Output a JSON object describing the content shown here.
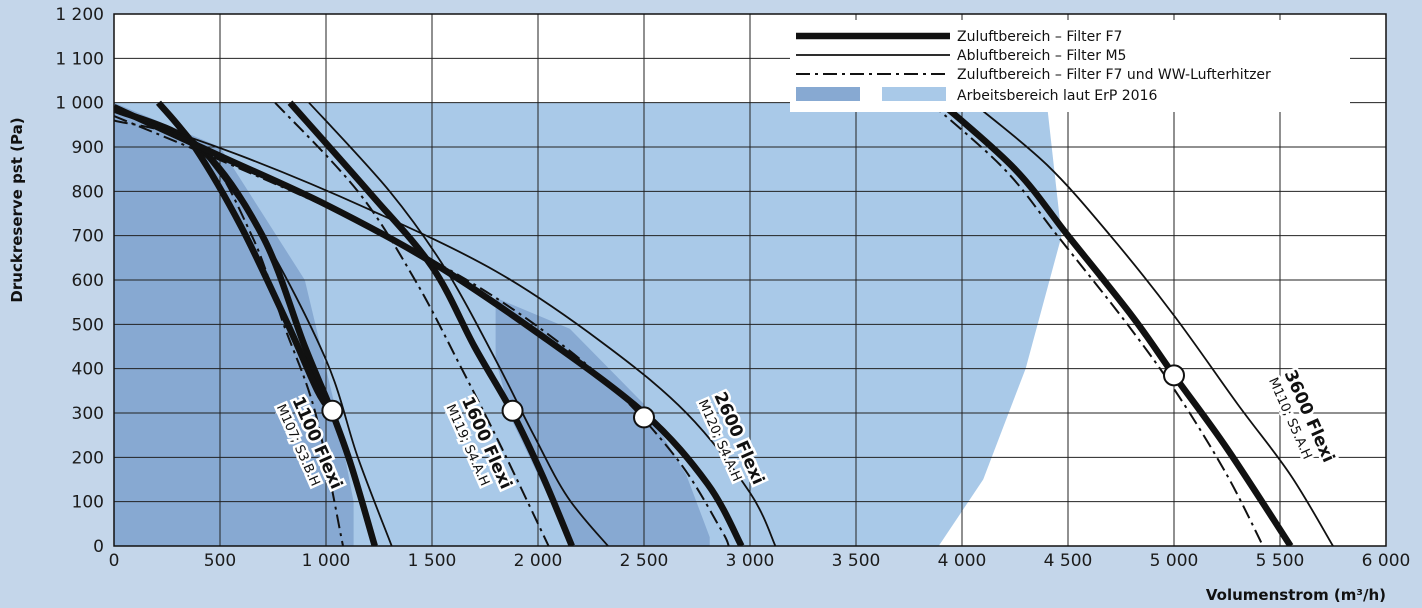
{
  "chart_data": {
    "type": "line",
    "title": "",
    "xlabel": "Volumenstrom (m³/h)",
    "ylabel": "Druckreserve pst (Pa)",
    "xlim": [
      0,
      6000
    ],
    "ylim": [
      0,
      1200
    ],
    "x_ticks": [
      0,
      500,
      1000,
      1500,
      2000,
      2500,
      3000,
      3500,
      4000,
      4500,
      5000,
      5500,
      6000
    ],
    "x_tick_labels": [
      "0",
      "500",
      "1 000",
      "1 500",
      "2 000",
      "2 500",
      "3 000",
      "3 500",
      "4 000",
      "4 500",
      "5 000",
      "5 500",
      "6 000"
    ],
    "y_ticks": [
      0,
      100,
      200,
      300,
      400,
      500,
      600,
      700,
      800,
      900,
      1000,
      1100,
      1200
    ],
    "y_tick_labels": [
      "0",
      "100",
      "200",
      "300",
      "400",
      "500",
      "600",
      "700",
      "800",
      "900",
      "1 000",
      "1 100",
      "1 200"
    ],
    "grid": true,
    "legend_position": "top-right",
    "legend": [
      {
        "label": "Zuluftbereich – Filter F7",
        "style": "thick"
      },
      {
        "label": "Abluftbereich – Filter M5",
        "style": "thin"
      },
      {
        "label": "Zuluftbereich – Filter F7 und WW-Lufterhitzer",
        "style": "dashdot"
      },
      {
        "label": "Arbeitsbereich laut ErP 2016",
        "style": "area"
      }
    ],
    "colors": {
      "background": "#c4d6ea",
      "plot_bg": "#ffffff",
      "area_dark": "#87a9d2",
      "area_light": "#a9c9e8",
      "grid": "#222222",
      "line": "#111111"
    },
    "work_areas": [
      {
        "model": "1100 Flexi",
        "shade": "dark",
        "points": [
          [
            0,
            1000
          ],
          [
            500,
            900
          ],
          [
            900,
            600
          ],
          [
            1050,
            300
          ],
          [
            1130,
            100
          ],
          [
            1130,
            0
          ],
          [
            0,
            0
          ]
        ]
      },
      {
        "model": "1600 Flexi",
        "shade": "dark",
        "points": [
          [
            1800,
            560
          ],
          [
            2150,
            490
          ],
          [
            2500,
            320
          ],
          [
            2700,
            160
          ],
          [
            2810,
            20
          ],
          [
            2810,
            0
          ],
          [
            2160,
            0
          ],
          [
            1880,
            280
          ],
          [
            1800,
            420
          ]
        ]
      },
      {
        "model": "2600 Flexi",
        "shade": "light",
        "points": [
          [
            0,
            1000
          ],
          [
            4400,
            1000
          ],
          [
            4470,
            700
          ],
          [
            4300,
            400
          ],
          [
            4100,
            150
          ],
          [
            3890,
            0
          ],
          [
            0,
            0
          ]
        ]
      }
    ],
    "series": [
      {
        "model": "1100 Flexi",
        "style": "thick",
        "points": [
          [
            0,
            985
          ],
          [
            400,
            900
          ],
          [
            700,
            700
          ],
          [
            900,
            450
          ],
          [
            1030,
            300
          ],
          [
            1120,
            180
          ],
          [
            1230,
            0
          ]
        ]
      },
      {
        "model": "1100 Flexi",
        "style": "thin",
        "points": [
          [
            220,
            1000
          ],
          [
            400,
            900
          ],
          [
            700,
            700
          ],
          [
            1000,
            420
          ],
          [
            1150,
            200
          ],
          [
            1310,
            0
          ]
        ]
      },
      {
        "model": "1100 Flexi",
        "style": "dashdot",
        "points": [
          [
            0,
            960
          ],
          [
            400,
            900
          ],
          [
            650,
            700
          ],
          [
            800,
            500
          ],
          [
            950,
            300
          ],
          [
            1080,
            0
          ]
        ]
      },
      {
        "model": "1100 Flexi",
        "style": "thick",
        "points": [
          [
            210,
            1000
          ],
          [
            380,
            900
          ],
          [
            600,
            720
          ],
          [
            820,
            500
          ],
          [
            960,
            350
          ],
          [
            1030,
            300
          ]
        ]
      },
      {
        "model": "1600 Flexi",
        "style": "thick",
        "points": [
          [
            830,
            1000
          ],
          [
            1200,
            800
          ],
          [
            1500,
            630
          ],
          [
            1700,
            450
          ],
          [
            1880,
            300
          ],
          [
            2020,
            160
          ],
          [
            2160,
            0
          ]
        ]
      },
      {
        "model": "1600 Flexi",
        "style": "thin",
        "points": [
          [
            920,
            1000
          ],
          [
            1300,
            800
          ],
          [
            1570,
            620
          ],
          [
            1800,
            420
          ],
          [
            1980,
            250
          ],
          [
            2140,
            110
          ],
          [
            2330,
            0
          ]
        ]
      },
      {
        "model": "1600 Flexi",
        "style": "dashdot",
        "points": [
          [
            760,
            1000
          ],
          [
            1150,
            800
          ],
          [
            1420,
            600
          ],
          [
            1640,
            400
          ],
          [
            1830,
            220
          ],
          [
            2050,
            0
          ]
        ]
      },
      {
        "model": "2600 Flexi",
        "style": "thick",
        "points": [
          [
            0,
            990
          ],
          [
            500,
            880
          ],
          [
            1000,
            770
          ],
          [
            1500,
            640
          ],
          [
            2000,
            480
          ],
          [
            2500,
            300
          ],
          [
            2800,
            140
          ],
          [
            2960,
            0
          ]
        ]
      },
      {
        "model": "2600 Flexi",
        "style": "thin",
        "points": [
          [
            0,
            980
          ],
          [
            600,
            880
          ],
          [
            1200,
            760
          ],
          [
            1800,
            620
          ],
          [
            2300,
            460
          ],
          [
            2700,
            300
          ],
          [
            3000,
            120
          ],
          [
            3120,
            0
          ]
        ]
      },
      {
        "model": "2600 Flexi",
        "style": "dashdot",
        "points": [
          [
            0,
            970
          ],
          [
            600,
            850
          ],
          [
            1200,
            720
          ],
          [
            1800,
            560
          ],
          [
            2300,
            380
          ],
          [
            2650,
            200
          ],
          [
            2860,
            40
          ],
          [
            2900,
            0
          ]
        ]
      },
      {
        "model": "3600 Flexi",
        "style": "thick",
        "points": [
          [
            3900,
            1000
          ],
          [
            4250,
            850
          ],
          [
            4500,
            700
          ],
          [
            4800,
            520
          ],
          [
            5000,
            385
          ],
          [
            5250,
            220
          ],
          [
            5550,
            0
          ]
        ]
      },
      {
        "model": "3600 Flexi",
        "style": "thin",
        "points": [
          [
            4050,
            1000
          ],
          [
            4400,
            860
          ],
          [
            4700,
            700
          ],
          [
            5000,
            520
          ],
          [
            5300,
            320
          ],
          [
            5550,
            160
          ],
          [
            5750,
            0
          ]
        ]
      },
      {
        "model": "3600 Flexi",
        "style": "dashdot",
        "points": [
          [
            3850,
            1000
          ],
          [
            4200,
            850
          ],
          [
            4450,
            700
          ],
          [
            4780,
            500
          ],
          [
            5020,
            340
          ],
          [
            5250,
            160
          ],
          [
            5420,
            0
          ]
        ]
      }
    ],
    "operating_points": [
      {
        "model": "1100 Flexi",
        "x": 1030,
        "y": 305
      },
      {
        "model": "1600 Flexi",
        "x": 1880,
        "y": 305
      },
      {
        "model": "2600 Flexi",
        "x": 2500,
        "y": 290
      },
      {
        "model": "3600 Flexi",
        "x": 5000,
        "y": 385
      }
    ],
    "annotations": [
      {
        "name": "1100 Flexi",
        "code": "M107; S3.B.H",
        "x": 840,
        "y": 330
      },
      {
        "name": "1600 Flexi",
        "code": "M119; S4.A.H",
        "x": 1640,
        "y": 330
      },
      {
        "name": "2600 Flexi",
        "code": "M120; S4.A.H",
        "x": 2830,
        "y": 340
      },
      {
        "name": "3600 Flexi",
        "code": "M110; S5.A.H",
        "x": 5520,
        "y": 390
      }
    ]
  }
}
